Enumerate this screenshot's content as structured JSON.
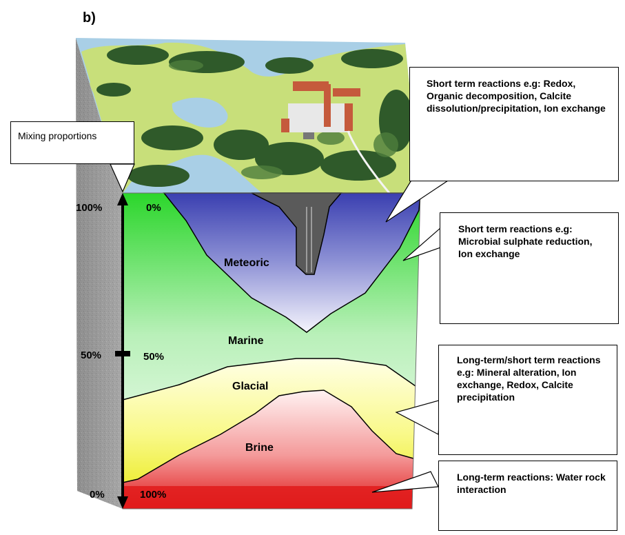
{
  "figure_label": "b)",
  "mixing_label": "Mixing proportions",
  "left_axis": {
    "top": "100%",
    "mid": "50%",
    "bottom": "0%"
  },
  "inner_axis": {
    "top": "0%",
    "mid": "50%",
    "bottom": "100%"
  },
  "zones": {
    "meteoric": "Meteoric",
    "marine": "Marine",
    "glacial": "Glacial",
    "brine": "Brine"
  },
  "callouts": {
    "c1": "Short term reactions e.g:  Redox, Organic decomposition, Calcite dissolution/precipitation, Ion exchange",
    "c2": "Short term reactions e.g: Microbial sulphate reduction, Ion exchange",
    "c3": "Long-term/short term reactions e.g:  Mineral alteration, Ion exchange, Redox, Calcite precipitation",
    "c4": "Long-term reactions: Water rock interaction"
  },
  "colors": {
    "meteoric": "#4a4fb3",
    "marine": "#2bd62b",
    "glacial": "#f2f218",
    "brine": "#e01b1b",
    "rock": "#9a9a9a",
    "water": "#a9cfe6",
    "land": "#c8df7a",
    "forest": "#2f5a2a"
  }
}
